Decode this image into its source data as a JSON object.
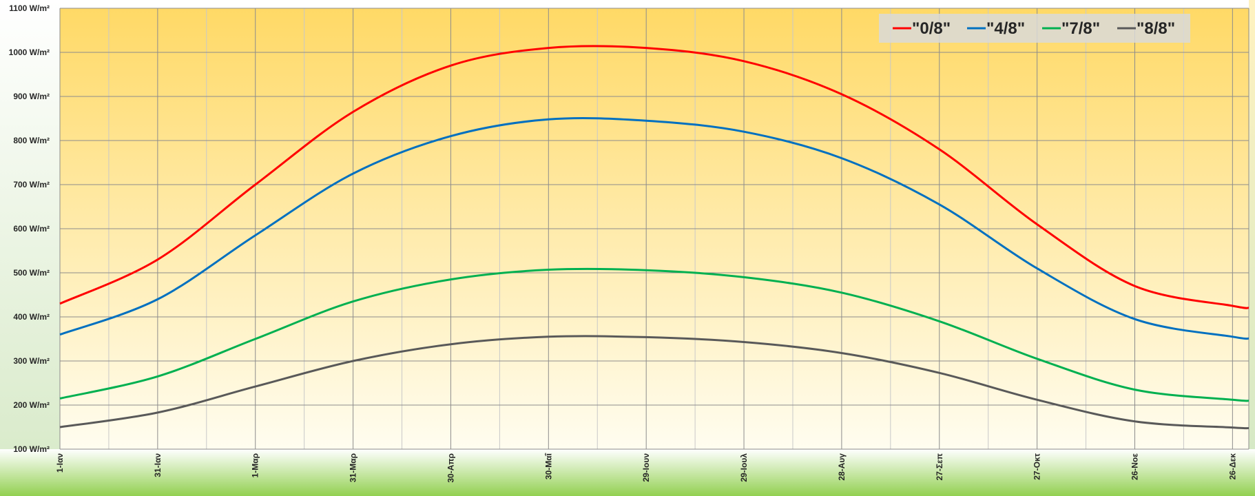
{
  "chart_data": {
    "type": "line",
    "title": "",
    "xlabel": "",
    "ylabel": "",
    "ylim": [
      100,
      1100
    ],
    "y_ticks": [
      100,
      200,
      300,
      400,
      500,
      600,
      700,
      800,
      900,
      1000,
      1100
    ],
    "y_unit": "W/m²",
    "y_tick_labels": [
      "100 W/m²",
      "200 W/m²",
      "300 W/m²",
      "400 W/m²",
      "500 W/m²",
      "600 W/m²",
      "700 W/m²",
      "800 W/m²",
      "900 W/m²",
      "1000 W/m²",
      "1100 W/m²"
    ],
    "x_tick_labels": [
      "1-Ιαν",
      "31-Ιαν",
      "1-Μαρ",
      "31-Μαρ",
      "30-Απρ",
      "30-Μαΐ",
      "29-Ιουν",
      "29-Ιουλ",
      "28-Αυγ",
      "27-Σεπ",
      "27-Οκτ",
      "26-Νοε",
      "26-Δεκ"
    ],
    "x": [
      "1-Ιαν",
      "31-Ιαν",
      "1-Μαρ",
      "31-Μαρ",
      "30-Απρ",
      "30-Μαΐ",
      "29-Ιουν",
      "29-Ιουλ",
      "28-Αυγ",
      "27-Σεπ",
      "27-Οκτ",
      "26-Νοε",
      "26-Δεκ"
    ],
    "grid": true,
    "legend_position": "top-right",
    "background_colors": {
      "plot_top": "#ffd966",
      "plot_bottom": "#fffdf0",
      "xaxis_band": "#92d050",
      "yaxis_band": "#d6e9c6"
    },
    "series": [
      {
        "name": "\"0/8\"",
        "color": "#ff0000",
        "values": [
          430,
          530,
          700,
          865,
          970,
          1010,
          1010,
          980,
          905,
          780,
          610,
          470,
          425
        ]
      },
      {
        "name": "\"4/8\"",
        "color": "#0070c0",
        "values": [
          360,
          440,
          585,
          725,
          810,
          848,
          845,
          820,
          760,
          655,
          510,
          395,
          355
        ]
      },
      {
        "name": "\"7/8\"",
        "color": "#00b050",
        "values": [
          215,
          265,
          350,
          435,
          485,
          507,
          506,
          490,
          455,
          390,
          305,
          235,
          212
        ]
      },
      {
        "name": "\"8/8\"",
        "color": "#595959",
        "values": [
          150,
          183,
          242,
          300,
          338,
          355,
          354,
          343,
          318,
          273,
          212,
          163,
          149
        ]
      }
    ]
  }
}
